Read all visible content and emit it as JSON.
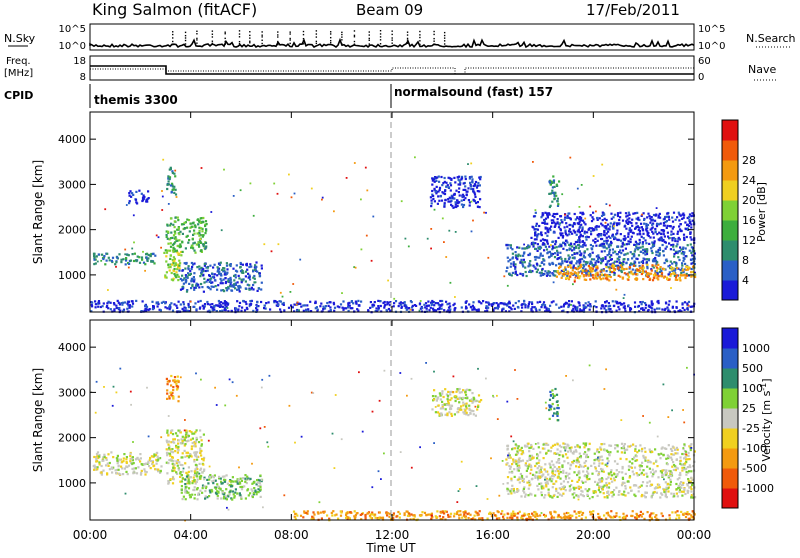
{
  "header": {
    "station": "King Salmon (fitACF)",
    "beam": "Beam 09",
    "date": "17/Feb/2011"
  },
  "noise_panel": {
    "left_label": "N.Sky",
    "right_label": "N.Search",
    "left_ticks": [
      "10^5",
      "10^0"
    ],
    "right_ticks": [
      "10^5",
      "10^0"
    ]
  },
  "freq_panel": {
    "left_label_line1": "Freq.",
    "left_label_line2": "[MHz]",
    "left_ticks": [
      "18",
      "8"
    ],
    "right_label": "Nave",
    "right_ticks": [
      "60",
      "0"
    ]
  },
  "cpid_panel": {
    "label": "CPID",
    "programs": [
      {
        "name": "themis 3300",
        "start_hour": 0
      },
      {
        "name": "normalsound (fast) 157",
        "start_hour": 12
      }
    ]
  },
  "colors": {
    "power": [
      "#1a1ad8",
      "#2a5fc6",
      "#2e8d6d",
      "#3dae3d",
      "#7fd135",
      "#f0d020",
      "#f49a10",
      "#f05a0a",
      "#e01010"
    ],
    "velocity": [
      "#e01010",
      "#f05a0a",
      "#f49a10",
      "#f0d020",
      "#c8c8c0",
      "#7fd135",
      "#2e8d6d",
      "#2a5fc6",
      "#1a1ad8"
    ],
    "ground_scatter": "#b8b8b0"
  },
  "chart_data": [
    {
      "type": "heatmap",
      "name": "power",
      "xlabel": "Time UT",
      "ylabel": "Slant Range [km]",
      "xlim": [
        0,
        24
      ],
      "ylim": [
        180,
        4600
      ],
      "x_ticks": [
        "00:00",
        "04:00",
        "08:00",
        "12:00",
        "16:00",
        "20:00",
        "00:00"
      ],
      "y_ticks": [
        1000,
        2000,
        3000,
        4000
      ],
      "colorbar_label": "Power [dB]",
      "colorbar_ticks": [
        "4",
        "8",
        "12",
        "16",
        "20",
        "24",
        "28"
      ],
      "colorbar_range": [
        0,
        30
      ],
      "regions": [
        {
          "t": [
            0.1,
            2.6
          ],
          "r": [
            1250,
            1500
          ],
          "level": 2
        },
        {
          "t": [
            1.5,
            2.3
          ],
          "r": [
            2600,
            2900
          ],
          "level": 0
        },
        {
          "t": [
            2.9,
            3.6
          ],
          "r": [
            900,
            1600
          ],
          "level": 4
        },
        {
          "t": [
            3.0,
            4.6
          ],
          "r": [
            1500,
            2300
          ],
          "level": 3
        },
        {
          "t": [
            3.5,
            6.8
          ],
          "r": [
            650,
            1300
          ],
          "level": 1
        },
        {
          "t": [
            3.0,
            3.4
          ],
          "r": [
            2800,
            3400
          ],
          "level": 2
        },
        {
          "t": [
            13.5,
            15.5
          ],
          "r": [
            2500,
            3200
          ],
          "level": 0
        },
        {
          "t": [
            16.5,
            24.0
          ],
          "r": [
            1000,
            1700
          ],
          "level": 1
        },
        {
          "t": [
            18.5,
            24.0
          ],
          "r": [
            900,
            1250
          ],
          "level": 6
        },
        {
          "t": [
            17.5,
            24.0
          ],
          "r": [
            1700,
            2400
          ],
          "level": 0
        },
        {
          "t": [
            18.2,
            18.6
          ],
          "r": [
            2500,
            3200
          ],
          "level": 2
        },
        {
          "t": [
            0,
            24.0
          ],
          "r": [
            200,
            450
          ],
          "level": 0
        }
      ]
    },
    {
      "type": "heatmap",
      "name": "velocity",
      "xlabel": "Time UT",
      "ylabel": "Slant Range [km]",
      "xlim": [
        0,
        24
      ],
      "ylim": [
        180,
        4600
      ],
      "x_ticks": [
        "00:00",
        "04:00",
        "08:00",
        "12:00",
        "16:00",
        "20:00",
        "00:00"
      ],
      "y_ticks": [
        1000,
        2000,
        3000,
        4000
      ],
      "colorbar_label": "Velocity [m s^-1]",
      "colorbar_ticks": [
        "1000",
        "500",
        "100",
        "25",
        "-25",
        "-100",
        "-500",
        "-1000"
      ],
      "colorbar_range": [
        -1000,
        1000
      ],
      "regions": [
        {
          "t": [
            0.1,
            2.8
          ],
          "r": [
            1200,
            1700
          ],
          "level": 4
        },
        {
          "t": [
            3.0,
            4.5
          ],
          "r": [
            1000,
            2200
          ],
          "level": 4
        },
        {
          "t": [
            3.6,
            6.8
          ],
          "r": [
            650,
            1200
          ],
          "level": 5
        },
        {
          "t": [
            3.0,
            3.5
          ],
          "r": [
            2800,
            3400
          ],
          "level": 2
        },
        {
          "t": [
            13.5,
            15.5
          ],
          "r": [
            2500,
            3100
          ],
          "level": 4
        },
        {
          "t": [
            16.5,
            24.0
          ],
          "r": [
            700,
            1900
          ],
          "level": 4
        },
        {
          "t": [
            18.2,
            18.6
          ],
          "r": [
            2400,
            3100
          ],
          "level": 6
        },
        {
          "t": [
            8.0,
            24.0
          ],
          "r": [
            200,
            400
          ],
          "level": 2
        }
      ]
    }
  ]
}
